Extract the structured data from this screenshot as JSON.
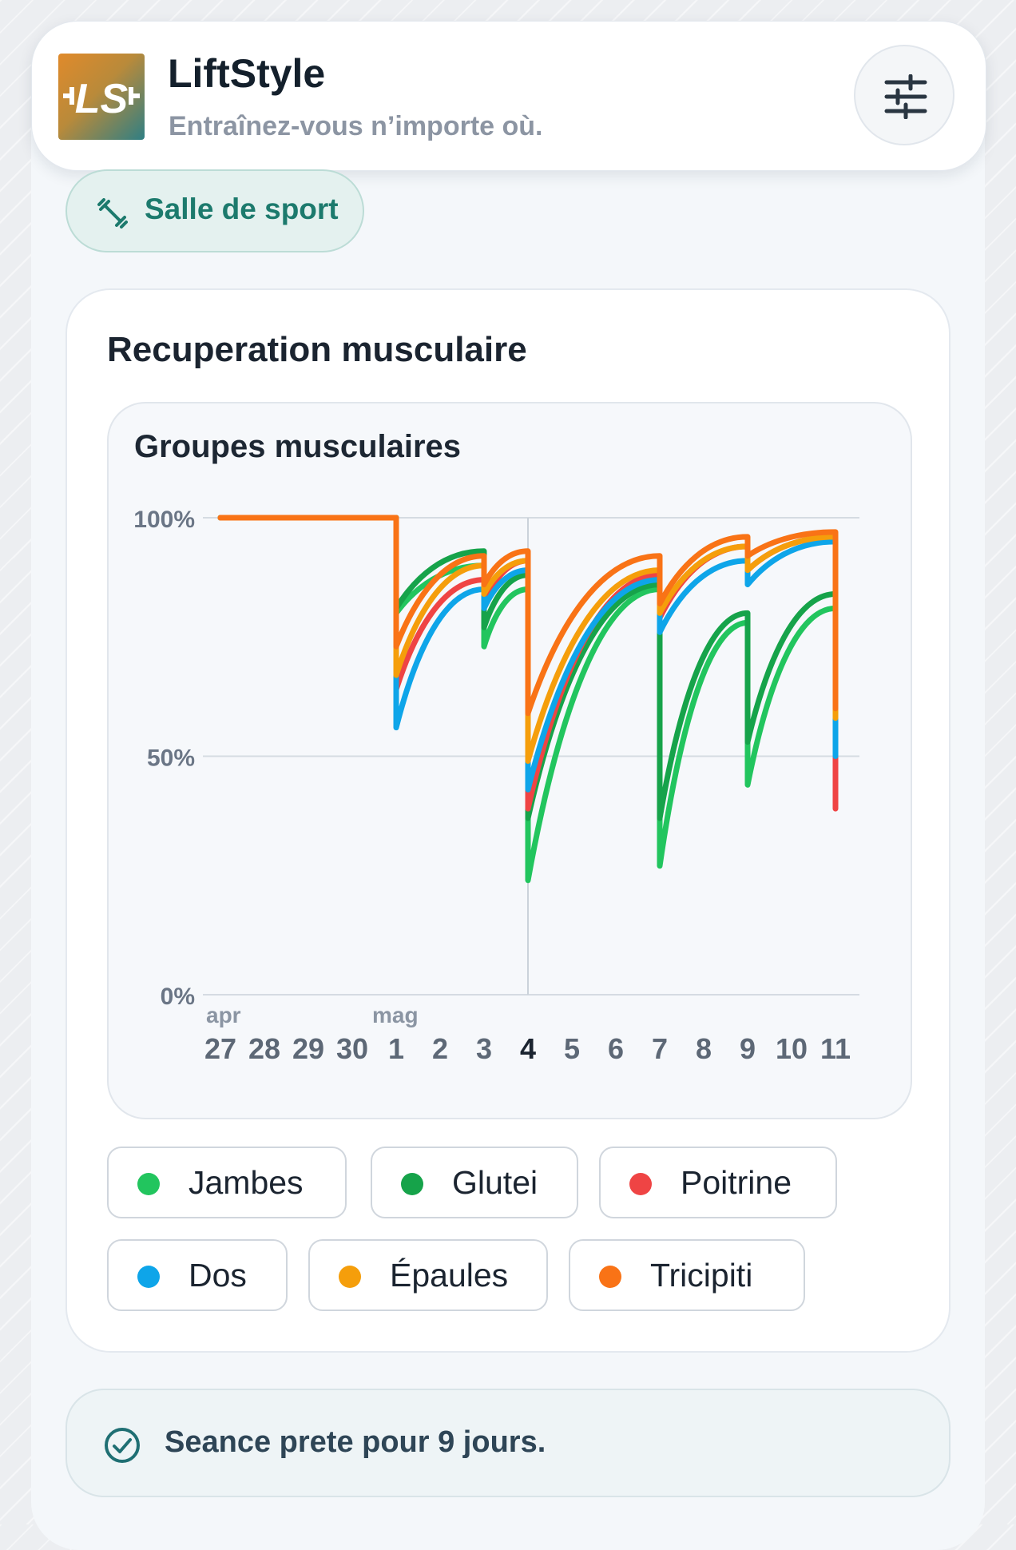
{
  "app": {
    "title": "LiftStyle",
    "subtitle": "Entraînez-vous n’importe où.",
    "logo_text": "LS",
    "settings_icon": "sliders-icon"
  },
  "location": {
    "label": "Salle de sport",
    "icon": "dumbbell-icon"
  },
  "recovery": {
    "title": "Recuperation musculaire"
  },
  "chart_data": {
    "type": "line",
    "title": "Groupes musculaires",
    "xlabel": "",
    "ylabel": "",
    "y_ticks": [
      "100%",
      "50%",
      "0%"
    ],
    "ylim": [
      0,
      100
    ],
    "x_month_labels": [
      {
        "label": "apr",
        "at": "27"
      },
      {
        "label": "mag",
        "at": "1"
      }
    ],
    "categories": [
      "27",
      "28",
      "29",
      "30",
      "1",
      "2",
      "3",
      "4",
      "5",
      "6",
      "7",
      "8",
      "9",
      "10",
      "11"
    ],
    "highlighted_category": "4",
    "grid": true,
    "legend": "bottom",
    "series": [
      {
        "name": "Jambes",
        "color": "#22c55e",
        "points": [
          [
            0,
            100
          ],
          [
            4,
            100
          ],
          [
            4,
            80
          ],
          [
            6,
            90
          ],
          [
            6,
            73
          ],
          [
            7,
            85
          ],
          [
            7,
            24
          ],
          [
            10,
            85
          ],
          [
            10,
            27
          ],
          [
            12,
            78
          ],
          [
            12,
            44
          ],
          [
            14,
            81
          ]
        ]
      },
      {
        "name": "Glutei",
        "color": "#16a34a",
        "points": [
          [
            0,
            100
          ],
          [
            4,
            100
          ],
          [
            4,
            81
          ],
          [
            6,
            93
          ],
          [
            6,
            77
          ],
          [
            7,
            88
          ],
          [
            7,
            37
          ],
          [
            10,
            86
          ],
          [
            10,
            37
          ],
          [
            12,
            80
          ],
          [
            12,
            53
          ],
          [
            14,
            84
          ]
        ]
      },
      {
        "name": "Poitrine",
        "color": "#ef4444",
        "points": [
          [
            0,
            100
          ],
          [
            4,
            100
          ],
          [
            4,
            64
          ],
          [
            6,
            87
          ],
          [
            6,
            82
          ],
          [
            7,
            91
          ],
          [
            7,
            39
          ],
          [
            10,
            88
          ],
          [
            10,
            79
          ],
          [
            12,
            94
          ],
          [
            12,
            89
          ],
          [
            14,
            96
          ],
          [
            14,
            39
          ]
        ]
      },
      {
        "name": "Dos",
        "color": "#0ea5e9",
        "points": [
          [
            0,
            100
          ],
          [
            4,
            100
          ],
          [
            4,
            56
          ],
          [
            6,
            85
          ],
          [
            6,
            81
          ],
          [
            7,
            89
          ],
          [
            7,
            43
          ],
          [
            10,
            87
          ],
          [
            10,
            76
          ],
          [
            12,
            91
          ],
          [
            12,
            86
          ],
          [
            14,
            95
          ],
          [
            14,
            50
          ]
        ]
      },
      {
        "name": "Épaules",
        "color": "#f59e0b",
        "points": [
          [
            0,
            100
          ],
          [
            4,
            100
          ],
          [
            4,
            67
          ],
          [
            6,
            90
          ],
          [
            6,
            84
          ],
          [
            7,
            91
          ],
          [
            7,
            49
          ],
          [
            10,
            89
          ],
          [
            10,
            80
          ],
          [
            12,
            94
          ],
          [
            12,
            89
          ],
          [
            14,
            96
          ],
          [
            14,
            58
          ]
        ]
      },
      {
        "name": "Tricipiti",
        "color": "#f97316",
        "points": [
          [
            0,
            100
          ],
          [
            4,
            100
          ],
          [
            4,
            73
          ],
          [
            6,
            92
          ],
          [
            6,
            86
          ],
          [
            7,
            93
          ],
          [
            7,
            59
          ],
          [
            10,
            92
          ],
          [
            10,
            82
          ],
          [
            12,
            96
          ],
          [
            12,
            92
          ],
          [
            14,
            97
          ],
          [
            14,
            60
          ]
        ]
      }
    ]
  },
  "status": {
    "text": "Seance prete pour 9 jours.",
    "icon": "check-circle-icon"
  }
}
